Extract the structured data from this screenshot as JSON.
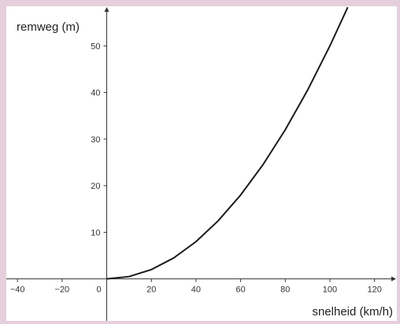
{
  "chart_data": {
    "type": "line",
    "title": "",
    "xlabel": "snelheid (km/h)",
    "ylabel": "remweg (m)",
    "xlim": [
      -45,
      130
    ],
    "ylim": [
      -9,
      58.5
    ],
    "x_ticks": [
      "−40",
      "−20",
      "0",
      "20",
      "40",
      "60",
      "80",
      "100",
      "120"
    ],
    "y_ticks": [
      "10",
      "20",
      "30",
      "40",
      "50"
    ],
    "grid": false,
    "legend": "none",
    "series": [
      {
        "formula": "y = 0.005 * x^2",
        "x": [
          0,
          10,
          20,
          30,
          40,
          50,
          60,
          70,
          80,
          90,
          100,
          108
        ],
        "y": [
          0,
          0.5,
          2,
          4.5,
          8,
          12.5,
          18,
          24.5,
          32,
          40.5,
          50,
          58.3
        ]
      }
    ],
    "colors": {
      "curve": "#1a1a1a",
      "axis": "#333333",
      "background": "#e6cfdc"
    }
  }
}
